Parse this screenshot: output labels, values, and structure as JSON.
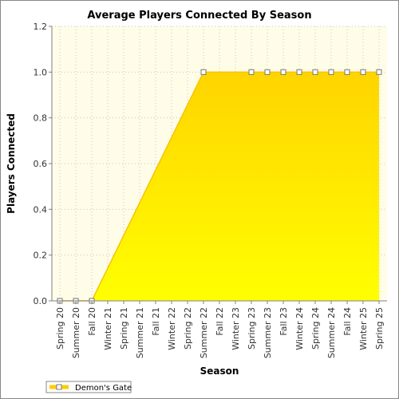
{
  "chart_data": {
    "type": "area",
    "title": "Average Players Connected By Season",
    "xlabel": "Season",
    "ylabel": "Players Connected",
    "categories": [
      "Spring 20",
      "Summer 20",
      "Fall 20",
      "Winter 21",
      "Spring 21",
      "Summer 21",
      "Fall 21",
      "Winter 22",
      "Spring 22",
      "Summer 22",
      "Fall 22",
      "Winter 23",
      "Spring 23",
      "Summer 23",
      "Fall 23",
      "Winter 24",
      "Spring 24",
      "Summer 24",
      "Fall 24",
      "Winter 25",
      "Spring 25"
    ],
    "series": [
      {
        "name": "Demon's Gate",
        "values": [
          0,
          0,
          0,
          null,
          null,
          null,
          null,
          null,
          null,
          1,
          null,
          null,
          1,
          1,
          1,
          1,
          1,
          1,
          1,
          1,
          1
        ],
        "color": "#ffdd00"
      }
    ],
    "ylim": [
      0,
      1.2
    ],
    "yticks": [
      "0.0",
      "0.2",
      "0.4",
      "0.6",
      "0.8",
      "1.0",
      "1.2"
    ],
    "grid": true,
    "legend": "bottom-left",
    "colors": {
      "plot_background": "#fffce8",
      "area_top": "#ffd400",
      "area_bottom": "#ffff00",
      "grid": "#c8c8c8"
    }
  }
}
